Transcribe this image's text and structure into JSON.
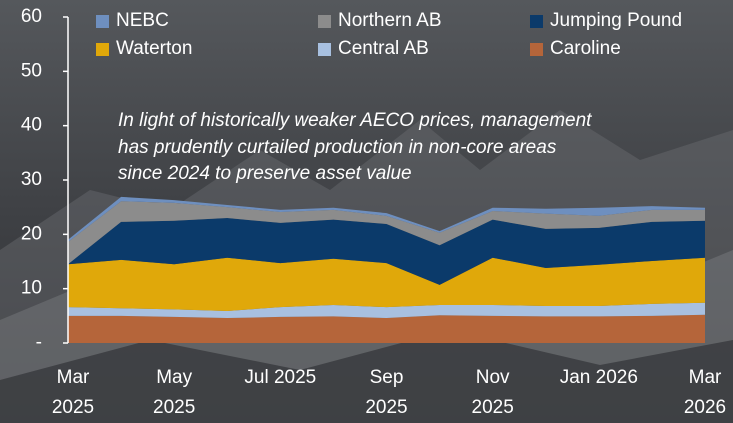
{
  "chart_data": {
    "type": "stacked_area",
    "annotation": "In light of historically weaker AECO prices, management\nhas prudently curtailed production in non-core areas\nsince 2024 to preserve asset value",
    "categories": [
      "Mar\n2025",
      null,
      "May\n2025",
      null,
      "Jul 2025",
      null,
      "Sep\n2025",
      null,
      "Nov\n2025",
      null,
      "Jan 2026",
      null,
      "Mar\n2026"
    ],
    "series": [
      {
        "name": "NEBC",
        "color": "#6e8fbf",
        "values": [
          0.4,
          0.8,
          0.5,
          0.4,
          0.4,
          0.4,
          0.5,
          0.3,
          0.6,
          0.9,
          1.5,
          0.7,
          0.4
        ]
      },
      {
        "name": "Northern AB",
        "color": "#8c8c8c",
        "values": [
          4.1,
          3.8,
          3.3,
          2.0,
          2.0,
          1.8,
          1.5,
          2.3,
          1.6,
          2.8,
          2.2,
          2.2,
          2.0
        ]
      },
      {
        "name": "Jumping Pound",
        "color": "#0b3a6a",
        "values": [
          0,
          7.0,
          8.0,
          7.3,
          7.4,
          7.2,
          7.2,
          7.3,
          7.0,
          7.2,
          6.8,
          7.2,
          6.8
        ]
      },
      {
        "name": "Waterton",
        "color": "#e0a80a",
        "values": [
          7.9,
          8.9,
          8.3,
          9.8,
          8.1,
          8.5,
          8.1,
          3.7,
          8.7,
          7.0,
          7.6,
          7.9,
          8.3
        ]
      },
      {
        "name": "Central AB",
        "color": "#a8c0e0",
        "values": [
          1.6,
          1.4,
          1.4,
          1.3,
          1.8,
          2.1,
          2.0,
          1.9,
          2.0,
          1.9,
          1.9,
          2.2,
          2.2
        ]
      },
      {
        "name": "Caroline",
        "color": "#b5653a",
        "values": [
          5.0,
          5.0,
          4.8,
          4.6,
          4.8,
          4.9,
          4.6,
          5.1,
          5.0,
          4.9,
          4.9,
          5.0,
          5.2
        ]
      }
    ],
    "ylim": [
      0,
      60
    ],
    "yticks": [
      {
        "value": 0,
        "label": "-"
      },
      10,
      20,
      30,
      40,
      50,
      60
    ]
  }
}
